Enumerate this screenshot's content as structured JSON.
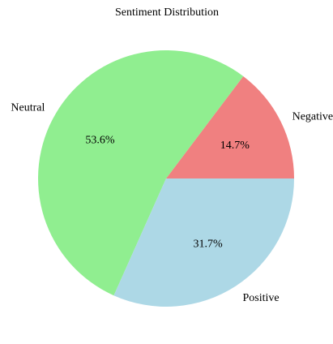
{
  "chart_data": {
    "type": "pie",
    "title": "Sentiment Distribution",
    "slices": [
      {
        "label": "Negative",
        "percent_label": "14.7%",
        "value": 14.7,
        "color": "#f08080"
      },
      {
        "label": "Neutral",
        "percent_label": "53.6%",
        "value": 53.6,
        "color": "#90ee90"
      },
      {
        "label": "Positive",
        "percent_label": "31.7%",
        "value": 31.7,
        "color": "#add8e6"
      }
    ],
    "legend": "none",
    "direction": "counterclockwise",
    "start_angle_deg": 0
  }
}
